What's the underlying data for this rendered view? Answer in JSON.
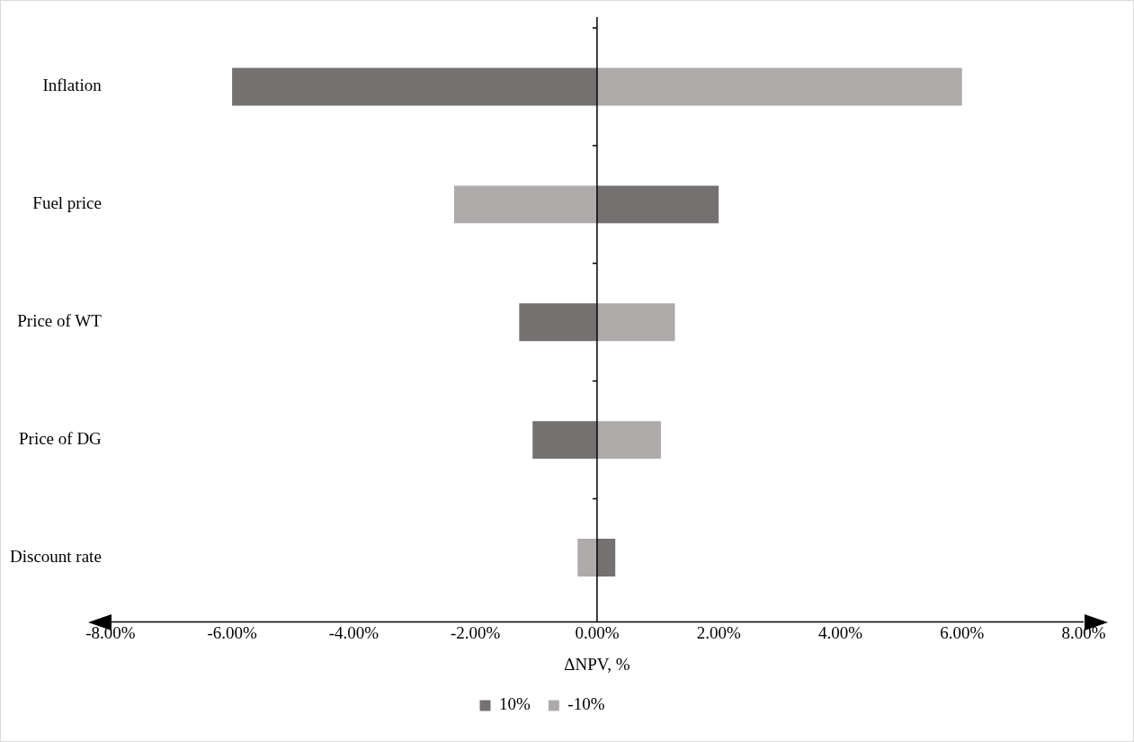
{
  "chart_data": {
    "type": "bar",
    "orientation": "horizontal",
    "stacked": true,
    "xlabel": "ΔNPV, %",
    "categories": [
      "Inflation",
      "Fuel price",
      "Price of WT",
      "Price of DG",
      "Discount rate"
    ],
    "series": [
      {
        "name": "10%",
        "color": "#767171",
        "values": [
          -6.0,
          2.0,
          -1.28,
          -1.06,
          0.3
        ]
      },
      {
        "name": "-10%",
        "color": "#aeaaaa",
        "values": [
          6.0,
          -2.35,
          1.28,
          1.05,
          -0.32
        ]
      }
    ],
    "xlim": [
      -8,
      8
    ],
    "xticks": [
      {
        "value": -8,
        "label": "-8.00%"
      },
      {
        "value": -6,
        "label": "-6.00%"
      },
      {
        "value": -4,
        "label": "-4.00%"
      },
      {
        "value": -2,
        "label": "-2.00%"
      },
      {
        "value": 0,
        "label": "0.00%"
      },
      {
        "value": 2,
        "label": "2.00%"
      },
      {
        "value": 4,
        "label": "4.00%"
      },
      {
        "value": 6,
        "label": "6.00%"
      },
      {
        "value": 8,
        "label": "8.00%"
      }
    ],
    "legend": "bottom"
  }
}
